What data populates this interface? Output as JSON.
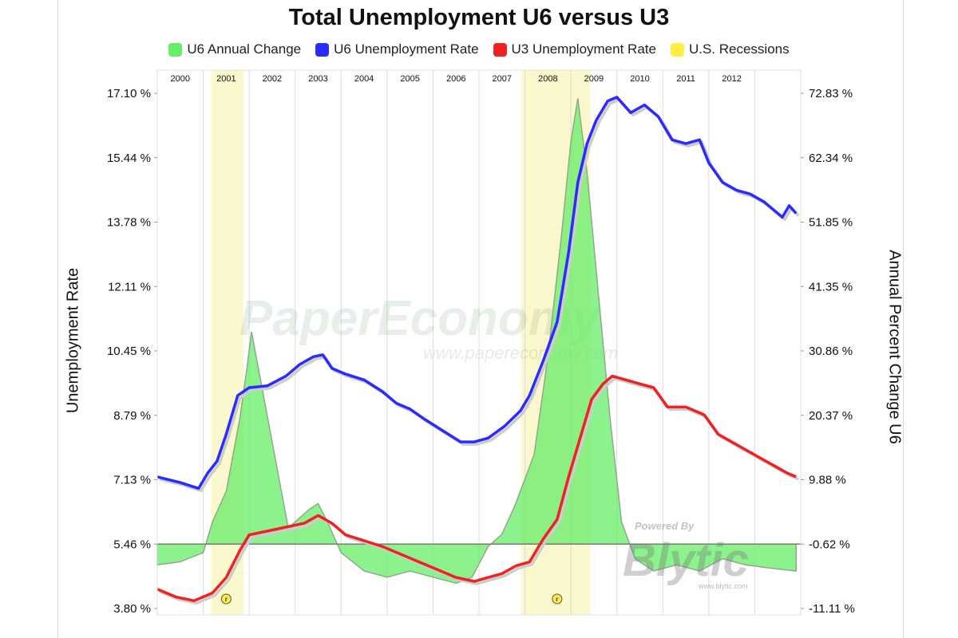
{
  "chart_data": {
    "type": "line",
    "title": "Total Unemployment U6 versus U3",
    "ylabel_left": "Unemployment Rate",
    "ylabel_right": "Annual Percent Change U6",
    "ylim_left": [
      3.8,
      17.1
    ],
    "ylim_right": [
      -11.11,
      72.83
    ],
    "yticks_left": [
      "17.10 %",
      "15.44 %",
      "13.78 %",
      "12.11 %",
      "10.45 %",
      "8.79 %",
      "7.13 %",
      "5.46 %",
      "3.80 %"
    ],
    "yticks_right": [
      "72.83 %",
      "62.34 %",
      "51.85 %",
      "41.35 %",
      "30.86 %",
      "20.37 %",
      "9.88 %",
      "-0.62 %",
      "-11.11 %"
    ],
    "xlim": [
      2000.0,
      2014.0
    ],
    "year_labels": [
      "2000",
      "2001",
      "2002",
      "2003",
      "2004",
      "2005",
      "2006",
      "2007",
      "2008",
      "2009",
      "2010",
      "2011",
      "2012"
    ],
    "legend_position": "top-center",
    "grid": "vertical",
    "series": [
      {
        "name": "U6 Annual Change",
        "kind": "area",
        "axis": "right",
        "color": "#66ee66",
        "points": [
          [
            2000.0,
            -4.0
          ],
          [
            2000.5,
            -3.5
          ],
          [
            2001.0,
            -2.0
          ],
          [
            2001.2,
            3.0
          ],
          [
            2001.5,
            8.0
          ],
          [
            2001.8,
            20.0
          ],
          [
            2001.95,
            28.0
          ],
          [
            2002.05,
            34.0
          ],
          [
            2002.2,
            28.0
          ],
          [
            2002.4,
            20.0
          ],
          [
            2002.6,
            12.0
          ],
          [
            2002.85,
            2.0
          ],
          [
            2003.0,
            3.0
          ],
          [
            2003.3,
            5.0
          ],
          [
            2003.5,
            6.0
          ],
          [
            2003.7,
            3.0
          ],
          [
            2004.0,
            -2.0
          ],
          [
            2004.5,
            -5.0
          ],
          [
            2005.0,
            -6.0
          ],
          [
            2005.5,
            -5.0
          ],
          [
            2006.0,
            -6.0
          ],
          [
            2006.5,
            -7.0
          ],
          [
            2006.85,
            -6.0
          ],
          [
            2007.2,
            -1.0
          ],
          [
            2007.5,
            1.0
          ],
          [
            2007.8,
            6.0
          ],
          [
            2008.2,
            14.0
          ],
          [
            2008.5,
            30.0
          ],
          [
            2008.8,
            50.0
          ],
          [
            2009.0,
            65.0
          ],
          [
            2009.15,
            72.0
          ],
          [
            2009.35,
            60.0
          ],
          [
            2009.6,
            40.0
          ],
          [
            2009.85,
            20.0
          ],
          [
            2010.1,
            3.0
          ],
          [
            2010.4,
            -3.0
          ],
          [
            2010.8,
            -5.0
          ],
          [
            2011.3,
            -4.0
          ],
          [
            2011.8,
            -5.0
          ],
          [
            2012.3,
            -3.0
          ],
          [
            2012.8,
            -4.0
          ],
          [
            2013.3,
            -4.5
          ],
          [
            2013.9,
            -5.0
          ]
        ]
      },
      {
        "name": "U6 Unemployment Rate",
        "kind": "line",
        "axis": "left",
        "color": "#2b2bff",
        "points": [
          [
            2000.0,
            7.2
          ],
          [
            2000.5,
            7.05
          ],
          [
            2000.9,
            6.9
          ],
          [
            2001.1,
            7.3
          ],
          [
            2001.3,
            7.6
          ],
          [
            2001.5,
            8.3
          ],
          [
            2001.75,
            9.3
          ],
          [
            2002.0,
            9.5
          ],
          [
            2002.4,
            9.55
          ],
          [
            2002.8,
            9.8
          ],
          [
            2003.1,
            10.1
          ],
          [
            2003.4,
            10.3
          ],
          [
            2003.6,
            10.35
          ],
          [
            2003.8,
            10.0
          ],
          [
            2004.1,
            9.85
          ],
          [
            2004.5,
            9.7
          ],
          [
            2004.9,
            9.4
          ],
          [
            2005.2,
            9.1
          ],
          [
            2005.5,
            8.95
          ],
          [
            2005.8,
            8.7
          ],
          [
            2006.2,
            8.4
          ],
          [
            2006.6,
            8.1
          ],
          [
            2006.9,
            8.1
          ],
          [
            2007.2,
            8.2
          ],
          [
            2007.55,
            8.5
          ],
          [
            2007.9,
            8.9
          ],
          [
            2008.1,
            9.3
          ],
          [
            2008.4,
            10.2
          ],
          [
            2008.7,
            11.2
          ],
          [
            2008.95,
            13.0
          ],
          [
            2009.15,
            14.8
          ],
          [
            2009.35,
            15.8
          ],
          [
            2009.55,
            16.4
          ],
          [
            2009.8,
            16.9
          ],
          [
            2010.0,
            17.0
          ],
          [
            2010.3,
            16.6
          ],
          [
            2010.6,
            16.8
          ],
          [
            2010.9,
            16.5
          ],
          [
            2011.2,
            15.9
          ],
          [
            2011.5,
            15.8
          ],
          [
            2011.8,
            15.9
          ],
          [
            2012.0,
            15.3
          ],
          [
            2012.3,
            14.8
          ],
          [
            2012.6,
            14.6
          ],
          [
            2012.9,
            14.5
          ],
          [
            2013.2,
            14.3
          ],
          [
            2013.4,
            14.1
          ],
          [
            2013.6,
            13.9
          ],
          [
            2013.75,
            14.2
          ],
          [
            2013.9,
            14.0
          ]
        ]
      },
      {
        "name": "U3 Unemployment Rate",
        "kind": "line",
        "axis": "left",
        "color": "#ee2222",
        "points": [
          [
            2000.0,
            4.3
          ],
          [
            2000.4,
            4.1
          ],
          [
            2000.8,
            4.0
          ],
          [
            2001.2,
            4.2
          ],
          [
            2001.5,
            4.6
          ],
          [
            2001.8,
            5.3
          ],
          [
            2002.0,
            5.7
          ],
          [
            2002.4,
            5.8
          ],
          [
            2002.8,
            5.9
          ],
          [
            2003.2,
            6.0
          ],
          [
            2003.5,
            6.2
          ],
          [
            2003.8,
            6.0
          ],
          [
            2004.1,
            5.7
          ],
          [
            2004.5,
            5.55
          ],
          [
            2004.9,
            5.4
          ],
          [
            2005.3,
            5.2
          ],
          [
            2005.7,
            5.0
          ],
          [
            2006.1,
            4.8
          ],
          [
            2006.5,
            4.6
          ],
          [
            2006.9,
            4.5
          ],
          [
            2007.2,
            4.6
          ],
          [
            2007.5,
            4.7
          ],
          [
            2007.8,
            4.9
          ],
          [
            2008.1,
            5.0
          ],
          [
            2008.4,
            5.6
          ],
          [
            2008.7,
            6.1
          ],
          [
            2008.95,
            7.2
          ],
          [
            2009.2,
            8.2
          ],
          [
            2009.45,
            9.2
          ],
          [
            2009.7,
            9.6
          ],
          [
            2009.9,
            9.8
          ],
          [
            2010.2,
            9.7
          ],
          [
            2010.5,
            9.6
          ],
          [
            2010.8,
            9.5
          ],
          [
            2011.1,
            9.0
          ],
          [
            2011.5,
            9.0
          ],
          [
            2011.9,
            8.8
          ],
          [
            2012.2,
            8.3
          ],
          [
            2012.5,
            8.1
          ],
          [
            2012.8,
            7.9
          ],
          [
            2013.1,
            7.7
          ],
          [
            2013.4,
            7.5
          ],
          [
            2013.7,
            7.3
          ],
          [
            2013.9,
            7.2
          ]
        ]
      },
      {
        "name": "U.S. Recessions",
        "kind": "band",
        "axis": "x",
        "color": "#ffee44",
        "ranges": [
          [
            2001.17,
            2001.88
          ],
          [
            2007.92,
            2009.42
          ]
        ]
      }
    ],
    "markers": [
      {
        "x": 2001.5,
        "label": "r"
      },
      {
        "x": 2008.7,
        "label": "r"
      }
    ]
  },
  "legend_items": [
    {
      "label": "U6 Annual Change",
      "color": "#66ee66"
    },
    {
      "label": "U6 Unemployment Rate",
      "color": "#2b2bff"
    },
    {
      "label": "U3 Unemployment Rate",
      "color": "#ee2222"
    },
    {
      "label": "U.S. Recessions",
      "color": "#ffee44"
    }
  ],
  "watermarks": {
    "brand": "PaperEconomy",
    "url": "www.papereconomy.com",
    "powered_by": "Powered By",
    "powered_brand": "Blytic",
    "powered_url": "www.blytic.com"
  }
}
